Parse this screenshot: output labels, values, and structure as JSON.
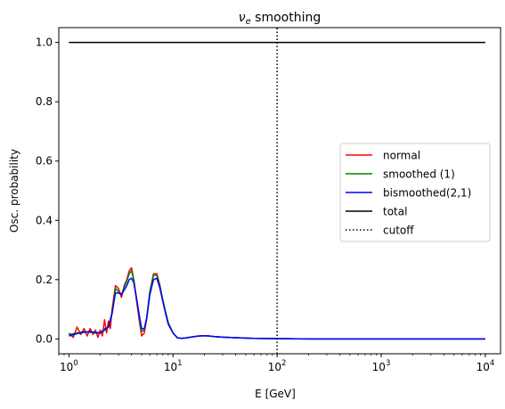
{
  "chart_data": {
    "type": "line",
    "title_main": "ν",
    "title_sub": "e",
    "title_rest": " smoothing",
    "xlabel": "E [GeV]",
    "ylabel": "Osc. probability",
    "xscale": "log",
    "xlim": [
      0.8,
      14000
    ],
    "ylim": [
      -0.05,
      1.05
    ],
    "xticks": [
      {
        "value": 1,
        "base": "10",
        "exp": "0"
      },
      {
        "value": 10,
        "base": "10",
        "exp": "1"
      },
      {
        "value": 100,
        "base": "10",
        "exp": "2"
      },
      {
        "value": 1000,
        "base": "10",
        "exp": "3"
      },
      {
        "value": 10000,
        "base": "10",
        "exp": "4"
      }
    ],
    "yticks": [
      {
        "value": 0.0,
        "label": "0.0"
      },
      {
        "value": 0.2,
        "label": "0.2"
      },
      {
        "value": 0.4,
        "label": "0.4"
      },
      {
        "value": 0.6,
        "label": "0.6"
      },
      {
        "value": 0.8,
        "label": "0.8"
      },
      {
        "value": 1.0,
        "label": "1.0"
      }
    ],
    "legend_position": "center-right",
    "cutoff_x": 100,
    "series": [
      {
        "name": "normal",
        "color": "#ff0000",
        "style": "solid",
        "x": [
          1.0,
          1.1,
          1.2,
          1.3,
          1.4,
          1.5,
          1.6,
          1.7,
          1.8,
          1.9,
          2.0,
          2.1,
          2.2,
          2.3,
          2.4,
          2.5,
          2.6,
          2.8,
          3.0,
          3.2,
          3.4,
          3.6,
          3.8,
          4.0,
          4.2,
          4.5,
          4.8,
          5.0,
          5.3,
          5.6,
          6.0,
          6.5,
          7.0,
          7.5,
          8.0,
          8.5,
          9.0,
          10.0,
          11.0,
          12.0,
          13.0,
          14.0,
          16.0,
          18.0,
          20.0,
          22.0,
          25.0,
          30.0,
          40.0,
          60.0,
          100.0,
          200.0,
          1000.0,
          10000.0
        ],
        "y": [
          0.02,
          0.005,
          0.04,
          0.015,
          0.035,
          0.01,
          0.035,
          0.015,
          0.03,
          0.005,
          0.03,
          0.01,
          0.065,
          0.02,
          0.06,
          0.035,
          0.1,
          0.18,
          0.17,
          0.14,
          0.18,
          0.2,
          0.23,
          0.24,
          0.2,
          0.12,
          0.05,
          0.01,
          0.02,
          0.07,
          0.16,
          0.22,
          0.22,
          0.18,
          0.13,
          0.09,
          0.055,
          0.02,
          0.004,
          0.002,
          0.003,
          0.005,
          0.008,
          0.01,
          0.011,
          0.01,
          0.008,
          0.006,
          0.004,
          0.002,
          0.001,
          0.0,
          0.0,
          0.0
        ]
      },
      {
        "name": "smoothed (1)",
        "color": "#008000",
        "style": "solid",
        "x": [
          1.0,
          1.2,
          1.4,
          1.6,
          1.8,
          2.0,
          2.2,
          2.4,
          2.6,
          2.8,
          3.0,
          3.2,
          3.4,
          3.6,
          3.8,
          4.0,
          4.2,
          4.5,
          4.8,
          5.0,
          5.3,
          5.6,
          6.0,
          6.5,
          7.0,
          7.5,
          8.0,
          8.5,
          9.0,
          10.0,
          11.0,
          12.0,
          13.0,
          14.0,
          16.0,
          18.0,
          20.0,
          22.0,
          25.0,
          30.0,
          40.0,
          60.0,
          100.0,
          200.0,
          1000.0,
          10000.0
        ],
        "y": [
          0.015,
          0.02,
          0.025,
          0.022,
          0.02,
          0.02,
          0.035,
          0.04,
          0.09,
          0.17,
          0.16,
          0.15,
          0.175,
          0.195,
          0.22,
          0.23,
          0.2,
          0.13,
          0.06,
          0.025,
          0.03,
          0.075,
          0.16,
          0.215,
          0.215,
          0.175,
          0.13,
          0.09,
          0.055,
          0.02,
          0.004,
          0.002,
          0.003,
          0.005,
          0.008,
          0.01,
          0.011,
          0.01,
          0.008,
          0.006,
          0.004,
          0.002,
          0.001,
          0.0,
          0.0,
          0.0
        ]
      },
      {
        "name": "bismoothed(2,1)",
        "color": "#0000ff",
        "style": "solid",
        "x": [
          1.0,
          1.2,
          1.4,
          1.6,
          1.8,
          2.0,
          2.2,
          2.4,
          2.6,
          2.8,
          3.0,
          3.2,
          3.4,
          3.6,
          3.8,
          4.0,
          4.2,
          4.5,
          4.8,
          5.0,
          5.3,
          5.6,
          6.0,
          6.5,
          7.0,
          7.5,
          8.0,
          8.5,
          9.0,
          10.0,
          11.0,
          12.0,
          13.0,
          14.0,
          16.0,
          18.0,
          20.0,
          22.0,
          25.0,
          30.0,
          40.0,
          60.0,
          100.0,
          200.0,
          1000.0,
          10000.0
        ],
        "y": [
          0.01,
          0.018,
          0.022,
          0.025,
          0.022,
          0.02,
          0.03,
          0.04,
          0.085,
          0.155,
          0.155,
          0.15,
          0.165,
          0.18,
          0.2,
          0.205,
          0.19,
          0.13,
          0.07,
          0.035,
          0.035,
          0.07,
          0.15,
          0.2,
          0.205,
          0.17,
          0.125,
          0.085,
          0.05,
          0.02,
          0.004,
          0.002,
          0.003,
          0.005,
          0.008,
          0.01,
          0.011,
          0.01,
          0.008,
          0.006,
          0.004,
          0.002,
          0.001,
          0.0,
          0.0,
          0.0
        ]
      },
      {
        "name": "total",
        "color": "#000000",
        "style": "solid",
        "x": [
          1.0,
          10000.0
        ],
        "y": [
          1.0,
          1.0
        ]
      },
      {
        "name": "cutoff",
        "color": "#000000",
        "style": "dotted",
        "x": [
          100.0,
          100.0
        ],
        "y": [
          -0.05,
          1.05
        ]
      }
    ]
  }
}
